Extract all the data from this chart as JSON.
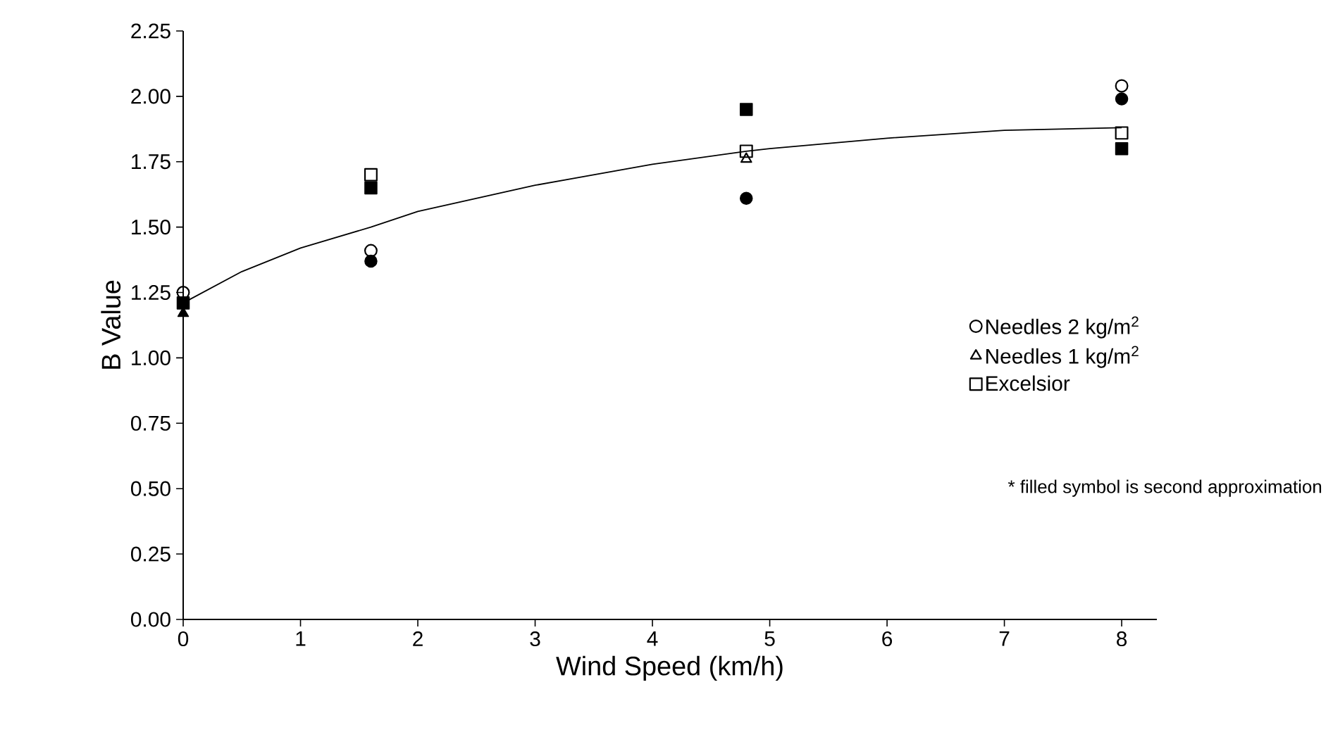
{
  "chart_data": {
    "type": "scatter",
    "xlabel": "Wind Speed (km/h)",
    "ylabel": "B Value",
    "xlim": [
      0,
      8.3
    ],
    "xticks": [
      0,
      1,
      2,
      3,
      4,
      5,
      6,
      7,
      8
    ],
    "ylim": [
      0,
      2.25
    ],
    "yticks": [
      {
        "value": 0,
        "label": "0.00"
      },
      {
        "value": 0.25,
        "label": "0.25"
      },
      {
        "value": 0.5,
        "label": "0.50"
      },
      {
        "value": 0.75,
        "label": "0.75"
      },
      {
        "value": 1,
        "label": "1.00"
      },
      {
        "value": 1.25,
        "label": "1.25"
      },
      {
        "value": 1.5,
        "label": "1.50"
      },
      {
        "value": 1.75,
        "label": "1.75"
      },
      {
        "value": 2,
        "label": "2.00"
      },
      {
        "value": 2.25,
        "label": "2.25"
      }
    ],
    "grid": false,
    "legend": "right",
    "annotations": [
      "* filled symbol is second approximation"
    ],
    "series": [
      {
        "name": "Needles 2 kg/m$^{2}$",
        "color": "#000000",
        "marker": "circle",
        "x": [
          0,
          1.6,
          8
        ],
        "values": [
          1.25,
          1.41,
          2.04
        ]
      },
      {
        "name": "Needles 1 kg/m$^{2}$",
        "color": "#000000",
        "marker": "triangle",
        "x": [
          4.8
        ],
        "values": [
          1.76
        ]
      },
      {
        "name": "Excelsior",
        "color": "#000000",
        "marker": "square",
        "x": [
          1.6,
          4.8,
          8
        ],
        "values": [
          1.7,
          1.79,
          1.86
        ]
      },
      {
        "color": "#000000",
        "marker": "circle",
        "x": [
          1.6,
          4.8,
          8
        ],
        "values": [
          1.37,
          1.61,
          1.99
        ]
      },
      {
        "color": "#000000",
        "marker": "triangle",
        "x": [
          0
        ],
        "values": [
          1.17
        ]
      },
      {
        "color": "#000000",
        "marker": "square",
        "x": [
          0,
          1.6,
          4.8,
          8
        ],
        "values": [
          1.21,
          1.65,
          1.95,
          1.8
        ]
      },
      {
        "type": "line",
        "color": "#000000",
        "marker": "none",
        "x": [
          0,
          0.5,
          1,
          1.6,
          2,
          3,
          4,
          4.8,
          5,
          6,
          7,
          8
        ],
        "values": [
          1.21,
          1.33,
          1.42,
          1.5,
          1.56,
          1.66,
          1.74,
          1.79,
          1.8,
          1.84,
          1.87,
          1.88
        ]
      }
    ]
  }
}
